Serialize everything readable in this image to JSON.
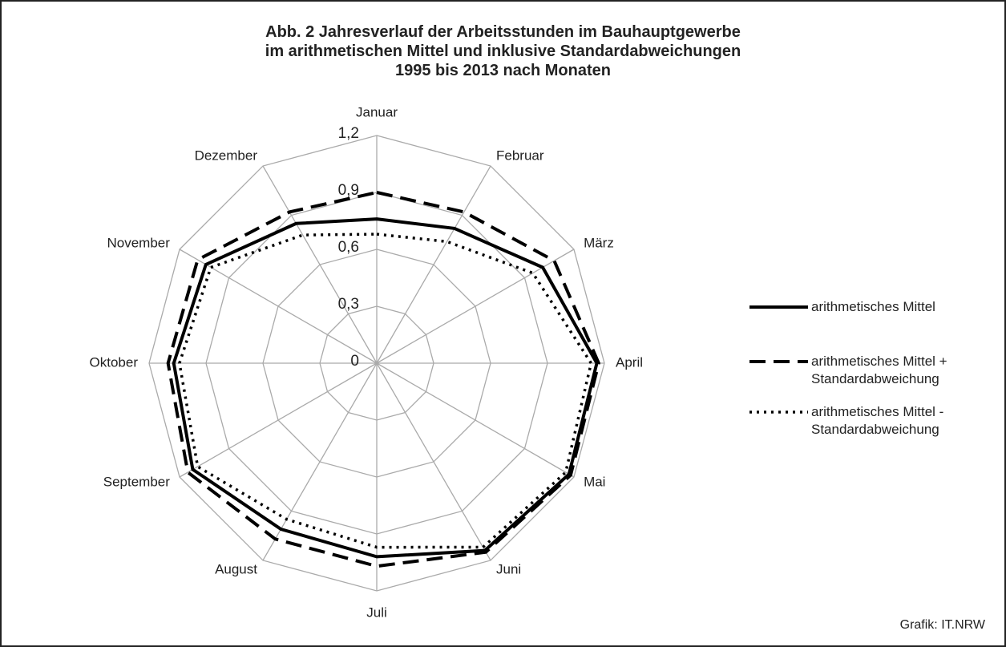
{
  "chart_data": {
    "type": "radar",
    "title": "Abb. 2 Jahresverlauf der Arbeitsstunden im Bauhauptgewerbe\nim arithmetischen Mittel und inklusive Standardabweichungen\n1995 bis 2013 nach Monaten",
    "categories": [
      "Januar",
      "Februar",
      "März",
      "April",
      "Mai",
      "Juni",
      "Juli",
      "August",
      "September",
      "Oktober",
      "November",
      "Dezember"
    ],
    "series": [
      {
        "name": "arithmetisches Mittel",
        "color": "#000000",
        "dash": "solid",
        "values": [
          0.76,
          0.82,
          1.01,
          1.16,
          1.17,
          1.14,
          1.02,
          1.01,
          1.12,
          1.07,
          1.04,
          0.85
        ]
      },
      {
        "name": "arithmetisches Mittel + Standardabweichung",
        "color": "#000000",
        "dash": "dashed",
        "values": [
          0.9,
          0.92,
          1.08,
          1.17,
          1.18,
          1.15,
          1.07,
          1.07,
          1.15,
          1.1,
          1.09,
          0.92
        ]
      },
      {
        "name": "arithmetisches Mittel - Standardabweichung",
        "color": "#000000",
        "dash": "dotted",
        "values": [
          0.68,
          0.74,
          0.95,
          1.13,
          1.15,
          1.12,
          0.97,
          0.95,
          1.09,
          1.04,
          1.01,
          0.78
        ]
      }
    ],
    "ylim": [
      0,
      1.2
    ],
    "yticks": [
      0,
      {
        "value": 0.3,
        "label": "0,3"
      },
      {
        "value": 0.6,
        "label": "0,6"
      },
      {
        "value": 0.9,
        "label": "0,9"
      },
      {
        "value": 1.2,
        "label": "1,2"
      }
    ],
    "grid": true,
    "legend": "right",
    "source": "Grafik: IT.NRW"
  }
}
